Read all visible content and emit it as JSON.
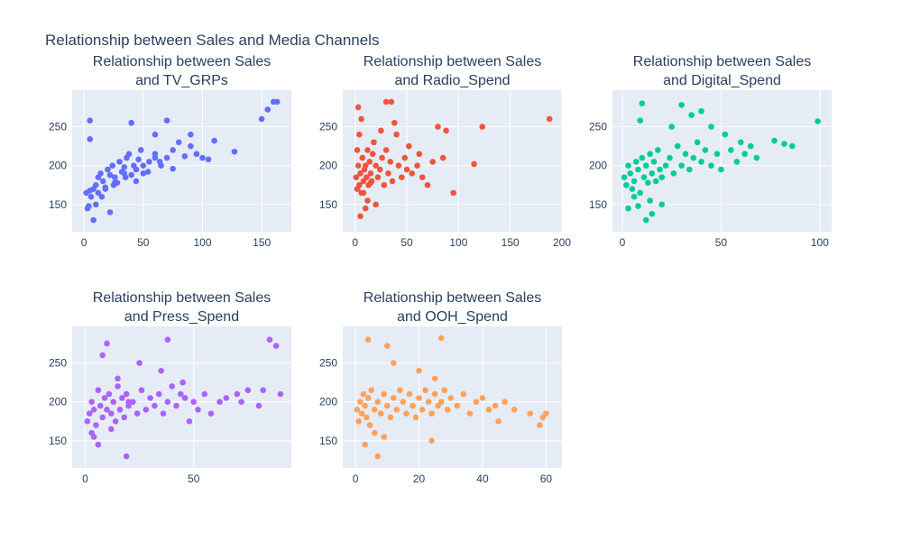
{
  "title": "Relationship between Sales and Media Channels",
  "chart_data": [
    {
      "type": "scatter",
      "title": "Relationship between Sales and TV_GRPs",
      "title_lines": [
        "Relationship between Sales",
        "and TV_GRPs"
      ],
      "color": "#636efa",
      "xlim": [
        -10,
        175
      ],
      "ylim": [
        115,
        297
      ],
      "xticks": [
        0,
        50,
        100,
        150
      ],
      "yticks": [
        150,
        200,
        250
      ],
      "x": [
        2,
        4,
        6,
        8,
        10,
        12,
        14,
        16,
        18,
        20,
        22,
        24,
        26,
        28,
        30,
        32,
        34,
        36,
        38,
        40,
        42,
        44,
        46,
        48,
        50,
        55,
        60,
        65,
        70,
        75,
        80,
        85,
        90,
        95,
        100,
        105,
        110,
        127,
        150,
        155,
        160,
        163,
        5,
        5,
        8,
        22,
        40,
        60,
        70,
        3,
        5,
        10,
        15,
        25,
        35,
        50,
        60,
        75,
        90,
        12,
        18,
        26,
        34,
        44,
        54,
        64
      ],
      "y": [
        165,
        148,
        160,
        170,
        175,
        185,
        190,
        180,
        172,
        195,
        188,
        200,
        185,
        178,
        205,
        192,
        198,
        210,
        215,
        188,
        200,
        195,
        208,
        220,
        190,
        205,
        215,
        200,
        210,
        220,
        230,
        212,
        225,
        215,
        210,
        208,
        232,
        218,
        260,
        272,
        282,
        282,
        258,
        234,
        130,
        140,
        255,
        240,
        258,
        145,
        168,
        150,
        160,
        175,
        185,
        200,
        210,
        196,
        240,
        165,
        170,
        178,
        190,
        180,
        192,
        205
      ]
    },
    {
      "type": "scatter",
      "title": "Relationship between Sales and Radio_Spend",
      "title_lines": [
        "Relationship between Sales",
        "and Radio_Spend"
      ],
      "color": "#ef553b",
      "xlim": [
        -12,
        200
      ],
      "ylim": [
        115,
        297
      ],
      "xticks": [
        0,
        50,
        100,
        150,
        200
      ],
      "yticks": [
        150,
        200,
        250
      ],
      "x": [
        1,
        2,
        3,
        4,
        5,
        6,
        7,
        8,
        9,
        10,
        11,
        12,
        13,
        14,
        15,
        16,
        17,
        18,
        20,
        22,
        24,
        26,
        28,
        30,
        32,
        34,
        36,
        38,
        40,
        42,
        45,
        48,
        50,
        52,
        55,
        60,
        62,
        65,
        70,
        75,
        80,
        85,
        88,
        95,
        115,
        123,
        188,
        5,
        10,
        20,
        30,
        35,
        2,
        4,
        8,
        12,
        18,
        25,
        3,
        6,
        15
      ],
      "y": [
        185,
        170,
        200,
        175,
        190,
        165,
        210,
        180,
        195,
        200,
        185,
        220,
        175,
        205,
        190,
        180,
        215,
        230,
        200,
        185,
        195,
        210,
        175,
        220,
        190,
        205,
        180,
        255,
        240,
        200,
        185,
        210,
        195,
        225,
        190,
        200,
        215,
        185,
        175,
        205,
        250,
        210,
        245,
        165,
        202,
        250,
        260,
        135,
        145,
        150,
        282,
        282,
        220,
        240,
        165,
        155,
        230,
        245,
        275,
        260,
        178
      ]
    },
    {
      "type": "scatter",
      "title": "Relationship between Sales and Digital_Spend",
      "title_lines": [
        "Relationship between Sales",
        "and Digital_Spend"
      ],
      "color": "#00cc96",
      "xlim": [
        -5,
        106
      ],
      "ylim": [
        115,
        297
      ],
      "xticks": [
        0,
        50,
        100
      ],
      "yticks": [
        150,
        200,
        250
      ],
      "x": [
        1,
        2,
        3,
        4,
        5,
        6,
        7,
        8,
        9,
        10,
        11,
        12,
        13,
        14,
        15,
        16,
        17,
        18,
        19,
        20,
        22,
        24,
        26,
        28,
        30,
        32,
        34,
        36,
        38,
        40,
        42,
        45,
        48,
        50,
        52,
        55,
        58,
        60,
        62,
        65,
        68,
        77,
        82,
        86,
        99,
        10,
        12,
        20,
        30,
        40,
        3,
        6,
        9,
        15,
        25,
        35,
        45,
        8,
        14
      ],
      "y": [
        185,
        175,
        200,
        190,
        170,
        180,
        205,
        195,
        165,
        210,
        185,
        200,
        178,
        215,
        190,
        205,
        180,
        220,
        195,
        185,
        200,
        210,
        190,
        225,
        200,
        215,
        195,
        210,
        230,
        205,
        220,
        200,
        215,
        195,
        240,
        220,
        205,
        230,
        215,
        225,
        210,
        232,
        228,
        225,
        257,
        280,
        130,
        150,
        278,
        270,
        145,
        160,
        258,
        138,
        250,
        265,
        250,
        148,
        155
      ]
    },
    {
      "type": "scatter",
      "title": "Relationship between Sales and Press_Spend",
      "title_lines": [
        "Relationship between Sales",
        "and Press_Spend"
      ],
      "color": "#ab63fa",
      "xlim": [
        -6,
        95
      ],
      "ylim": [
        115,
        297
      ],
      "xticks": [
        0,
        50
      ],
      "yticks": [
        150,
        200,
        250
      ],
      "x": [
        1,
        2,
        3,
        4,
        5,
        6,
        7,
        8,
        9,
        10,
        11,
        12,
        13,
        14,
        15,
        16,
        17,
        18,
        19,
        20,
        22,
        24,
        26,
        28,
        30,
        32,
        34,
        36,
        38,
        40,
        42,
        44,
        46,
        48,
        50,
        52,
        55,
        58,
        62,
        65,
        70,
        72,
        75,
        80,
        82,
        85,
        88,
        90,
        4,
        6,
        10,
        12,
        19,
        38,
        8,
        15,
        25,
        35,
        45,
        3,
        20
      ],
      "y": [
        175,
        185,
        200,
        190,
        170,
        215,
        195,
        180,
        205,
        190,
        210,
        185,
        200,
        175,
        220,
        190,
        205,
        180,
        210,
        195,
        200,
        185,
        215,
        190,
        205,
        195,
        210,
        185,
        200,
        220,
        195,
        210,
        205,
        175,
        200,
        190,
        210,
        185,
        200,
        205,
        210,
        200,
        215,
        195,
        215,
        280,
        272,
        210,
        155,
        145,
        275,
        165,
        130,
        280,
        260,
        230,
        250,
        240,
        225,
        160,
        200
      ]
    },
    {
      "type": "scatter",
      "title": "Relationship between Sales and OOH_Spend",
      "title_lines": [
        "Relationship between Sales",
        "and OOH_Spend"
      ],
      "color": "#ffa15a",
      "xlim": [
        -4,
        65
      ],
      "ylim": [
        115,
        297
      ],
      "xticks": [
        0,
        20,
        40,
        60
      ],
      "yticks": [
        150,
        200,
        250
      ],
      "x": [
        0.5,
        1,
        1.5,
        2,
        2.5,
        3,
        3.5,
        4,
        4.5,
        5,
        6,
        7,
        8,
        9,
        10,
        11,
        12,
        13,
        14,
        15,
        16,
        17,
        18,
        19,
        20,
        21,
        22,
        23,
        24,
        25,
        26,
        27,
        28,
        29,
        30,
        32,
        34,
        36,
        38,
        40,
        42,
        44,
        45,
        47,
        50,
        55,
        58,
        59,
        60,
        4,
        7,
        10,
        24,
        27,
        3,
        6,
        9,
        12,
        20,
        25
      ],
      "y": [
        190,
        175,
        200,
        185,
        210,
        195,
        180,
        205,
        170,
        215,
        190,
        200,
        185,
        210,
        195,
        180,
        205,
        190,
        215,
        200,
        185,
        210,
        195,
        180,
        205,
        190,
        215,
        200,
        185,
        210,
        195,
        200,
        215,
        190,
        205,
        195,
        210,
        185,
        200,
        205,
        190,
        195,
        175,
        200,
        190,
        185,
        170,
        180,
        185,
        280,
        130,
        272,
        150,
        282,
        145,
        160,
        155,
        250,
        240,
        230
      ]
    }
  ]
}
